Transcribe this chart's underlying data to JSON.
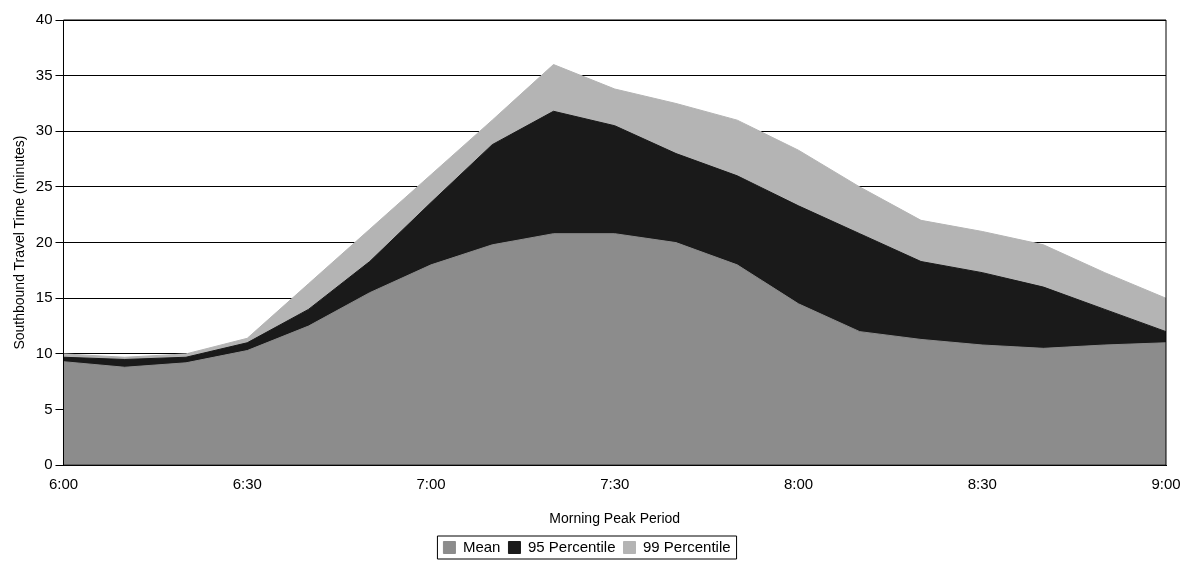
{
  "chart_data": {
    "type": "area",
    "xlabel": "Morning Peak Period",
    "ylabel": "Southbound Travel Time (minutes)",
    "categories": [
      "6:00",
      null,
      null,
      "6:30",
      null,
      null,
      "7:00",
      null,
      null,
      "7:30",
      null,
      null,
      "8:00",
      null,
      null,
      "8:30",
      null,
      null,
      "9:00"
    ],
    "series": [
      {
        "name": "Mean",
        "color": "#8c8c8c",
        "values": [
          9.3,
          8.8,
          9.2,
          10.3,
          12.5,
          15.5,
          18,
          19.8,
          20.8,
          20.8,
          20,
          18,
          14.5,
          12,
          11.3,
          10.8,
          10.5,
          10.8,
          11
        ]
      },
      {
        "name": "95 Percentile",
        "color": "#1a1a1a",
        "values": [
          9.7,
          9.5,
          9.7,
          11,
          14,
          18.3,
          23.6,
          28.8,
          31.8,
          30.5,
          28,
          26,
          23.3,
          20.8,
          18.3,
          17.3,
          16,
          14,
          12
        ]
      },
      {
        "name": "99 Percentile",
        "color": "#b4b4b4",
        "values": [
          10,
          9.7,
          10,
          11.4,
          16.3,
          21.2,
          26.1,
          31,
          36,
          33.8,
          32.5,
          31,
          28.3,
          25,
          22,
          21,
          19.8,
          17.3,
          15
        ]
      }
    ],
    "ylim": [
      0,
      40
    ],
    "yticks": [
      0,
      5,
      10,
      15,
      20,
      25,
      30,
      35,
      40
    ],
    "grid": "y",
    "legend": "bottom"
  }
}
